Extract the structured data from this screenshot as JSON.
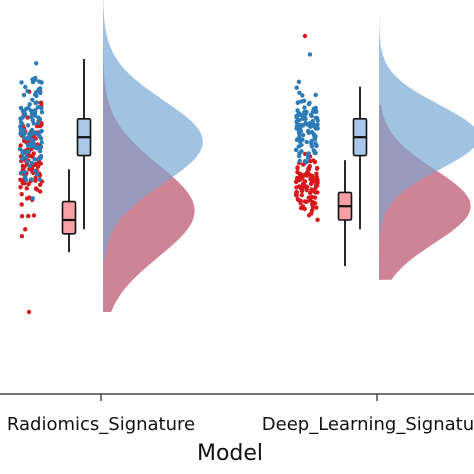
{
  "chart_data": {
    "type": "raincloud",
    "xlabel": "Model",
    "categories": [
      "Radiomics_Signature",
      "Deep_Learning_Signature"
    ],
    "colors": {
      "red_points": "#d7191c",
      "blue_points": "#2c7bb6",
      "red_fill": "#f08080",
      "blue_fill": "#8fb8dc",
      "overlap_fill": "#8a6a99",
      "box_red": "#f4a0a5",
      "box_blue": "#a9c8e8"
    },
    "groups": [
      {
        "category": "Radiomics_Signature",
        "red_box": {
          "whisker_low": 0.03,
          "q1": 0.07,
          "median": 0.1,
          "q3": 0.14,
          "whisker_high": 0.21
        },
        "blue_box": {
          "whisker_low": 0.08,
          "q1": 0.24,
          "median": 0.28,
          "q3": 0.32,
          "whisker_high": 0.45
        },
        "red_density": {
          "peak": 0.12,
          "spread": 0.1,
          "height": 0.55,
          "tail_low": -0.1,
          "tail_high": 0.5
        },
        "blue_density": {
          "peak": 0.27,
          "spread": 0.09,
          "height": 0.6,
          "tail_low": -0.1,
          "tail_high": 0.7
        },
        "red_points_range": [
          0.0,
          0.45
        ],
        "blue_points_range": [
          0.1,
          0.5
        ],
        "outliers": [
          -0.1,
          0.6
        ]
      },
      {
        "category": "Deep_Learning_Signature",
        "red_box": {
          "whisker_low": 0.0,
          "q1": 0.1,
          "median": 0.13,
          "q3": 0.16,
          "whisker_high": 0.23
        },
        "blue_box": {
          "whisker_low": 0.08,
          "q1": 0.24,
          "median": 0.28,
          "q3": 0.32,
          "whisker_high": 0.39
        },
        "red_density": {
          "peak": 0.13,
          "spread": 0.08,
          "height": 0.55,
          "tail_low": -0.03,
          "tail_high": 0.35
        },
        "blue_density": {
          "peak": 0.28,
          "spread": 0.07,
          "height": 0.6,
          "tail_low": 0.0,
          "tail_high": 0.55
        },
        "red_points_range": [
          0.05,
          0.3
        ],
        "blue_points_range": [
          0.15,
          0.45
        ],
        "outliers": [
          0.5,
          0.46
        ]
      }
    ]
  }
}
